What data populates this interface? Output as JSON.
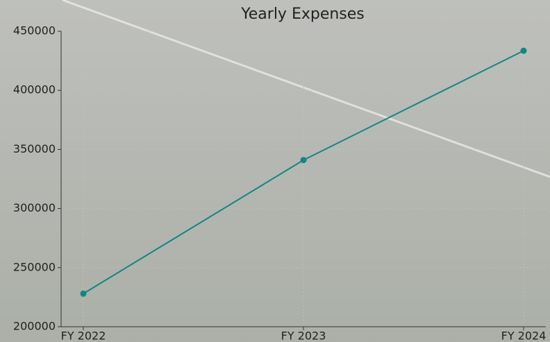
{
  "chart_data": {
    "type": "line",
    "title": "Yearly Expenses",
    "categories": [
      "FY 2022",
      "FY 2023",
      "FY 2024"
    ],
    "values": [
      228000,
      341000,
      433500
    ],
    "color": "#138585",
    "ylim": [
      200000,
      450000
    ],
    "yticks": [
      200000,
      250000,
      300000,
      350000,
      400000,
      450000
    ],
    "grid": true
  }
}
